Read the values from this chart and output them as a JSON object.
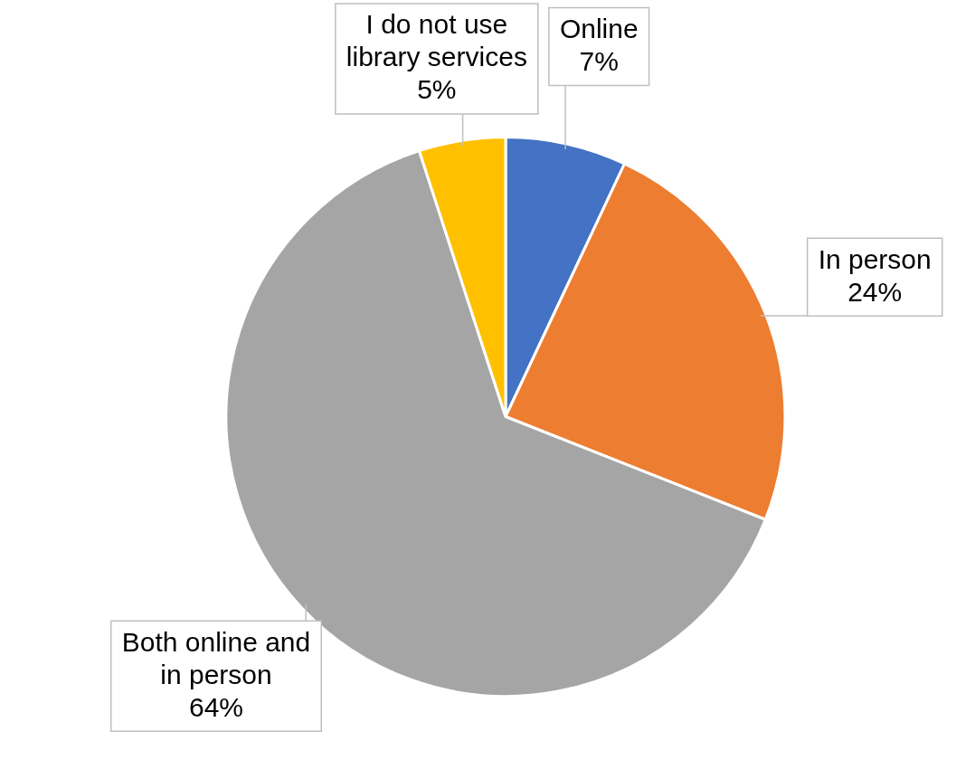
{
  "chart_data": {
    "type": "pie",
    "categories": [
      "Online",
      "In person",
      "Both online and in person",
      "I do not use library services"
    ],
    "values": [
      7,
      24,
      64,
      5
    ],
    "value_labels": [
      "7%",
      "24%",
      "64%",
      "5%"
    ],
    "colors": [
      "#4472c4",
      "#ed7d31",
      "#a5a5a5",
      "#ffc000"
    ],
    "legend": false
  }
}
